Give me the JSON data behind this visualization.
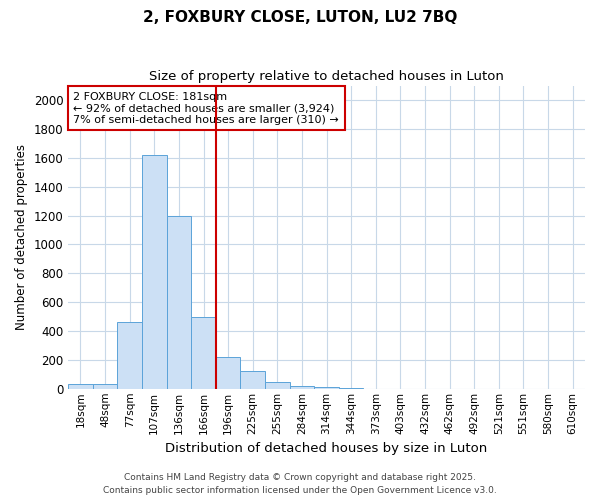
{
  "title_line1": "2, FOXBURY CLOSE, LUTON, LU2 7BQ",
  "title_line2": "Size of property relative to detached houses in Luton",
  "xlabel": "Distribution of detached houses by size in Luton",
  "ylabel": "Number of detached properties",
  "categories": [
    "18sqm",
    "48sqm",
    "77sqm",
    "107sqm",
    "136sqm",
    "166sqm",
    "196sqm",
    "225sqm",
    "255sqm",
    "284sqm",
    "314sqm",
    "344sqm",
    "373sqm",
    "403sqm",
    "432sqm",
    "462sqm",
    "492sqm",
    "521sqm",
    "551sqm",
    "580sqm",
    "610sqm"
  ],
  "values": [
    30,
    30,
    460,
    1620,
    1200,
    500,
    220,
    120,
    50,
    20,
    10,
    5,
    0,
    0,
    0,
    0,
    0,
    0,
    0,
    0,
    0
  ],
  "bar_color": "#cce0f5",
  "bar_edge_color": "#5ba3d9",
  "annotation_line1": "2 FOXBURY CLOSE: 181sqm",
  "annotation_line2": "← 92% of detached houses are smaller (3,924)",
  "annotation_line3": "7% of semi-detached houses are larger (310) →",
  "annotation_box_color": "white",
  "annotation_box_edge": "#cc0000",
  "red_line_color": "#cc0000",
  "ylim": [
    0,
    2100
  ],
  "yticks": [
    0,
    200,
    400,
    600,
    800,
    1000,
    1200,
    1400,
    1600,
    1800,
    2000
  ],
  "grid_color": "#c8d8e8",
  "bg_color": "#ffffff",
  "plot_bg_color": "#ffffff",
  "footer_line1": "Contains HM Land Registry data © Crown copyright and database right 2025.",
  "footer_line2": "Contains public sector information licensed under the Open Government Licence v3.0."
}
